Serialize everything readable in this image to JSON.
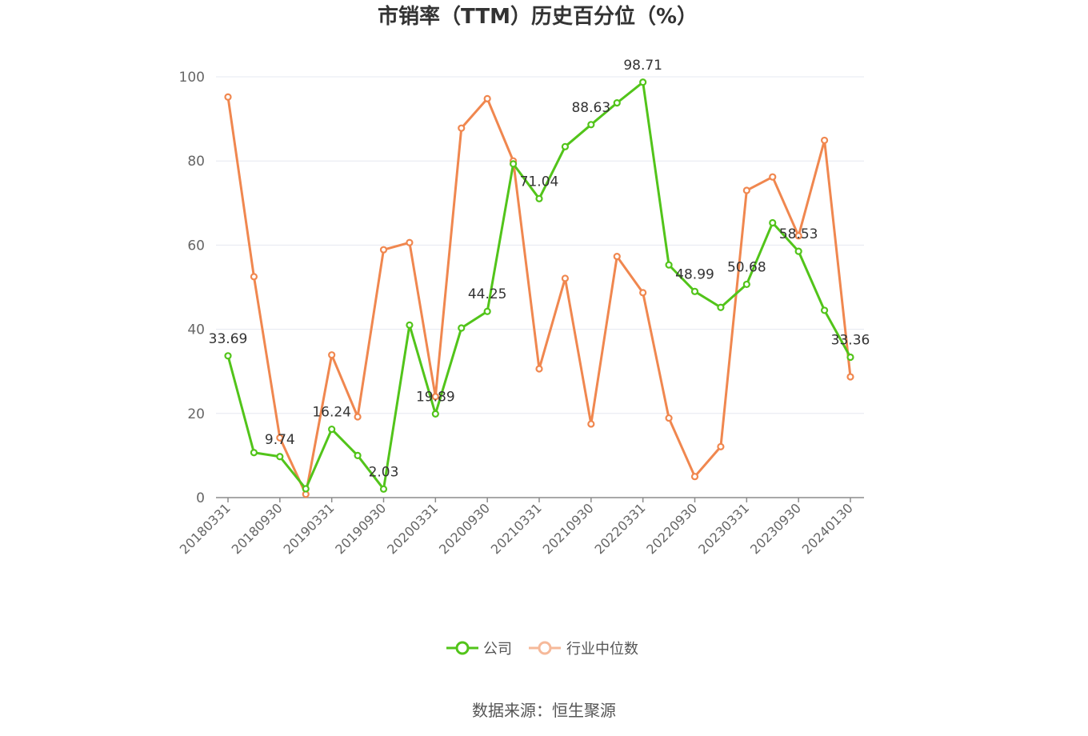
{
  "chart_data": {
    "type": "line",
    "title": "市销率（TTM）历史百分位（%）",
    "source_label": "数据来源：恒生聚源",
    "ylim": [
      0,
      100
    ],
    "yticks": [
      0,
      20,
      40,
      60,
      80,
      100
    ],
    "grid": true,
    "legend_position": "bottom",
    "x": [
      "20180331",
      "20180630",
      "20180930",
      "20181231",
      "20190331",
      "20190630",
      "20190930",
      "20191231",
      "20200331",
      "20200630",
      "20200930",
      "20201231",
      "20210331",
      "20210630",
      "20210930",
      "20211231",
      "20220331",
      "20220630",
      "20220930",
      "20221231",
      "20230331",
      "20230630",
      "20230930",
      "20231231",
      "20240130"
    ],
    "xtick_labels": [
      "20180331",
      "20180930",
      "20190331",
      "20190930",
      "20200331",
      "20200930",
      "20210331",
      "20210930",
      "20220331",
      "20220930",
      "20230331",
      "20230930",
      "20240130"
    ],
    "series": [
      {
        "name": "公司",
        "color": "#52c41a",
        "values": [
          33.69,
          10.7,
          9.74,
          2.1,
          16.24,
          10.0,
          2.03,
          41.0,
          19.89,
          40.3,
          44.25,
          79.3,
          71.04,
          83.4,
          88.63,
          93.8,
          98.71,
          55.3,
          48.99,
          45.2,
          50.68,
          65.3,
          58.53,
          44.5,
          33.36
        ],
        "labels": [
          "33.69",
          "",
          "9.74",
          "",
          "16.24",
          "",
          "2.03",
          "",
          "19.89",
          "",
          "44.25",
          "",
          "71.04",
          "",
          "88.63",
          "",
          "98.71",
          "",
          "48.99",
          "",
          "50.68",
          "",
          "58.53",
          "",
          "33.36"
        ]
      },
      {
        "name": "行业中位数",
        "color": "#f0874f",
        "values": [
          95.2,
          52.5,
          14.2,
          0.8,
          33.9,
          19.2,
          58.9,
          60.6,
          24.0,
          87.8,
          94.8,
          80.0,
          30.6,
          52.1,
          17.5,
          57.3,
          48.7,
          18.9,
          5.0,
          12.1,
          73.0,
          76.2,
          62.2,
          84.9,
          28.7
        ]
      }
    ]
  }
}
